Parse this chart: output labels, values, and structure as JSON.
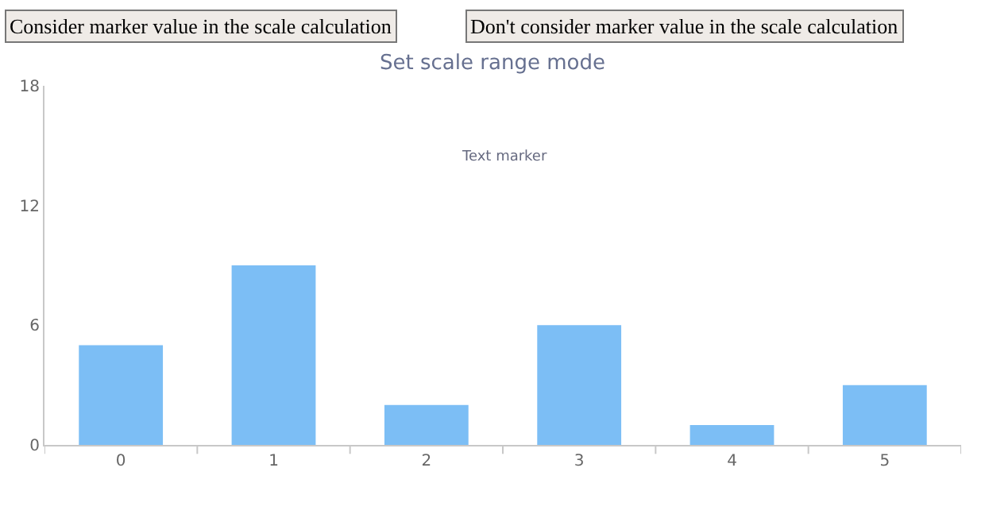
{
  "chart_data": {
    "type": "bar",
    "title": "Set scale range mode",
    "categories": [
      "0",
      "1",
      "2",
      "3",
      "4",
      "5"
    ],
    "values": [
      5,
      9,
      2,
      6,
      1,
      3
    ],
    "color": "#7cbef5",
    "ylim": [
      0,
      18
    ],
    "yticks": [
      0,
      6,
      12,
      18
    ],
    "grid": false,
    "annotations": [
      "Consider marker value in the scale calculation",
      "Don't consider marker value in the scale calculation",
      "Text marker"
    ]
  }
}
